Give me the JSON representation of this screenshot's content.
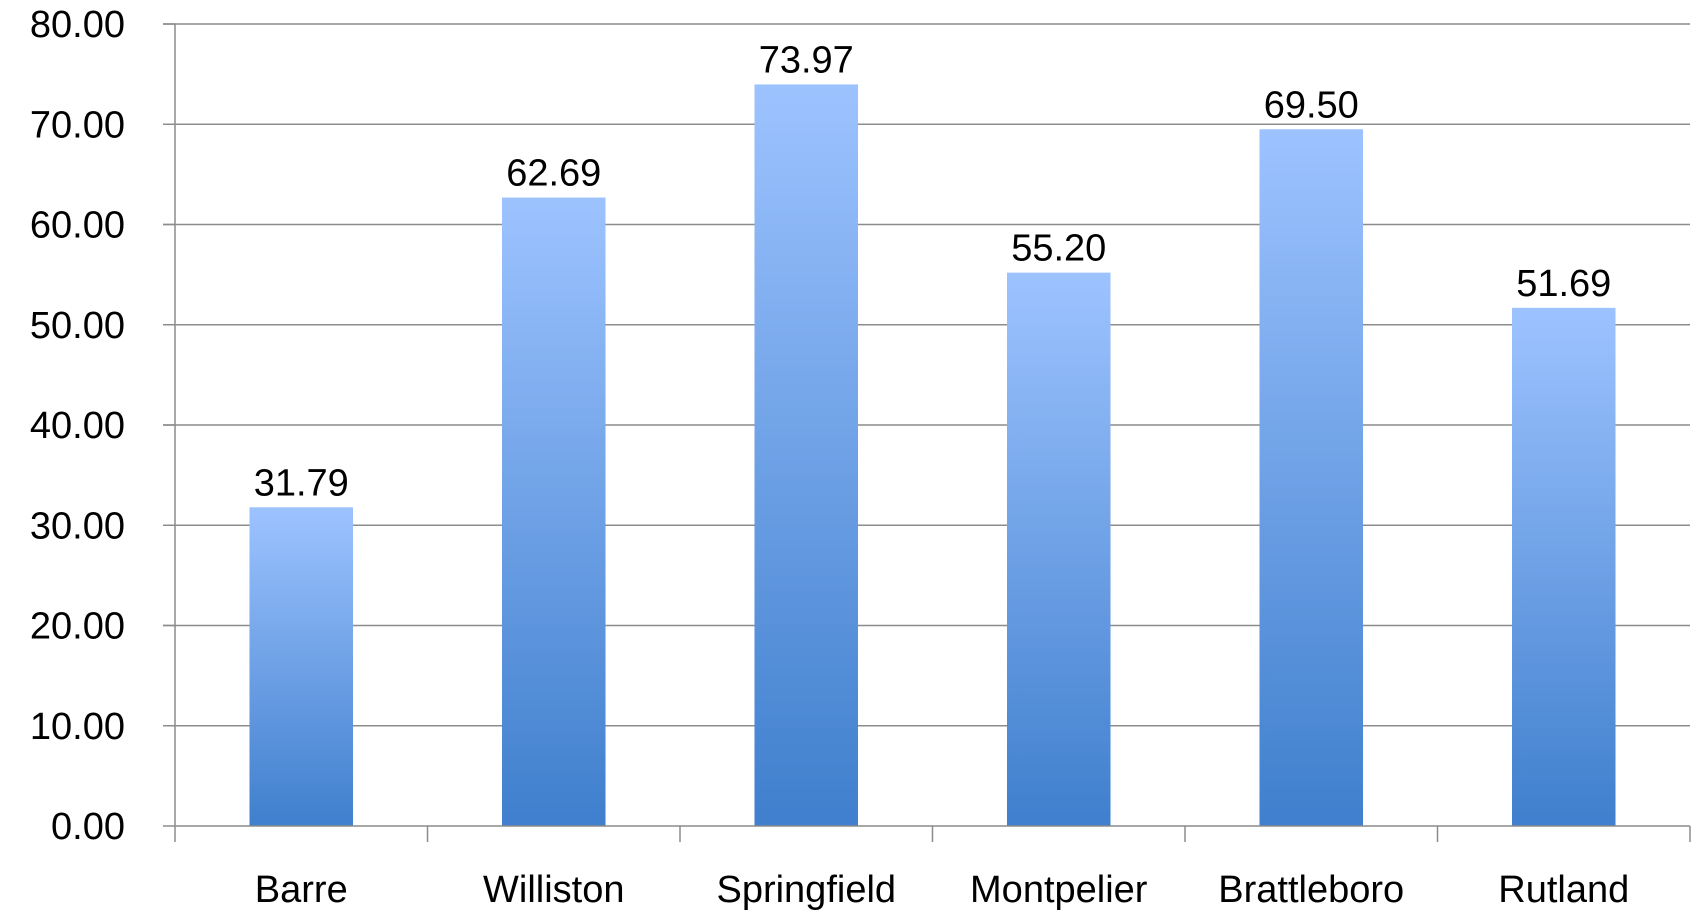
{
  "chart_data": {
    "type": "bar",
    "title": "",
    "xlabel": "",
    "ylabel": "",
    "categories": [
      "Barre",
      "Williston",
      "Springfield",
      "Montpelier",
      "Brattleboro",
      "Rutland"
    ],
    "values": [
      31.79,
      62.69,
      73.97,
      55.2,
      69.5,
      51.69
    ],
    "value_labels": [
      "31.79",
      "62.69",
      "73.97",
      "55.20",
      "69.50",
      "51.69"
    ],
    "ylim": [
      0,
      80
    ],
    "y_ticks": [
      "0.00",
      "10.00",
      "20.00",
      "30.00",
      "40.00",
      "50.00",
      "60.00",
      "70.00",
      "80.00"
    ],
    "grid": true,
    "legend": "none",
    "colors": {
      "bar_top": "#9dc3ff",
      "bar_bottom": "#3f7fcd",
      "grid": "#8c8c8c"
    }
  }
}
